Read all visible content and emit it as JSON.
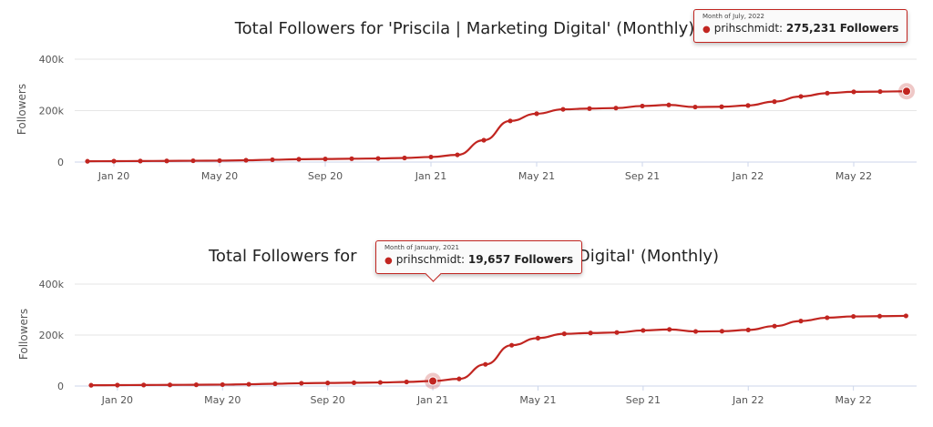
{
  "colors": {
    "series": "#c12520",
    "grid": "#e6e6e6",
    "axis_line": "#ccd6eb"
  },
  "chart_data": [
    {
      "type": "line",
      "title": "Total Followers for 'Priscila | Marketing Digital' (Monthly)",
      "ylabel": "Followers",
      "ylim": [
        0,
        400000
      ],
      "yticks": [
        {
          "value": 0,
          "label": "0"
        },
        {
          "value": 200000,
          "label": "200k"
        },
        {
          "value": 400000,
          "label": "400k"
        }
      ],
      "xticks": [
        "Jan 20",
        "May 20",
        "Sep 20",
        "Jan 21",
        "May 21",
        "Sep 21",
        "Jan 22",
        "May 22"
      ],
      "x": [
        "Dec 19",
        "Jan 20",
        "Feb 20",
        "Mar 20",
        "Apr 20",
        "May 20",
        "Jun 20",
        "Jul 20",
        "Aug 20",
        "Sep 20",
        "Oct 20",
        "Nov 20",
        "Dec 20",
        "Jan 21",
        "Feb 21",
        "Mar 21",
        "Apr 21",
        "May 21",
        "Jun 21",
        "Jul 21",
        "Aug 21",
        "Sep 21",
        "Oct 21",
        "Nov 21",
        "Dec 21",
        "Jan 22",
        "Feb 22",
        "Mar 22",
        "Apr 22",
        "May 22",
        "Jun 22",
        "Jul 22"
      ],
      "series": [
        {
          "values": [
            3000,
            3500,
            4000,
            4500,
            5000,
            5500,
            7000,
            9000,
            11000,
            12000,
            13000,
            14000,
            16000,
            19657,
            28000,
            85000,
            160000,
            188000,
            205000,
            208000,
            210000,
            218000,
            222000,
            214000,
            215000,
            220000,
            235000,
            255000,
            268000,
            273000,
            274000,
            275231
          ]
        }
      ],
      "grid": true,
      "tooltip": {
        "header": "Month of July, 2022",
        "series_name": "prihschmidt",
        "value_text": "275,231 Followers",
        "point_index": 31
      }
    },
    {
      "type": "line",
      "title_left": "Total Followers for",
      "title_right": "Marketing Digital' (Monthly)",
      "title_hidden_fragment": "'Priscila |",
      "ylabel": "Followers",
      "ylim": [
        0,
        400000
      ],
      "yticks": [
        {
          "value": 0,
          "label": "0"
        },
        {
          "value": 200000,
          "label": "200k"
        },
        {
          "value": 400000,
          "label": "400k"
        }
      ],
      "xticks": [
        "Jan 20",
        "May 20",
        "Sep 20",
        "Jan 21",
        "May 21",
        "Sep 21",
        "Jan 22",
        "May 22"
      ],
      "x": [
        "Dec 19",
        "Jan 20",
        "Feb 20",
        "Mar 20",
        "Apr 20",
        "May 20",
        "Jun 20",
        "Jul 20",
        "Aug 20",
        "Sep 20",
        "Oct 20",
        "Nov 20",
        "Dec 20",
        "Jan 21",
        "Feb 21",
        "Mar 21",
        "Apr 21",
        "May 21",
        "Jun 21",
        "Jul 21",
        "Aug 21",
        "Sep 21",
        "Oct 21",
        "Nov 21",
        "Dec 21",
        "Jan 22",
        "Feb 22",
        "Mar 22",
        "Apr 22",
        "May 22",
        "Jun 22",
        "Jul 22"
      ],
      "series": [
        {
          "values": [
            3000,
            3500,
            4000,
            4500,
            5000,
            5500,
            7000,
            9000,
            11000,
            12000,
            13000,
            14000,
            16000,
            19657,
            28000,
            85000,
            160000,
            188000,
            205000,
            208000,
            210000,
            218000,
            222000,
            214000,
            215000,
            220000,
            235000,
            255000,
            268000,
            273000,
            274000,
            275231
          ]
        }
      ],
      "grid": true,
      "tooltip": {
        "header": "Month of January, 2021",
        "series_name": "prihschmidt",
        "value_text": "19,657 Followers",
        "point_index": 13
      }
    }
  ]
}
